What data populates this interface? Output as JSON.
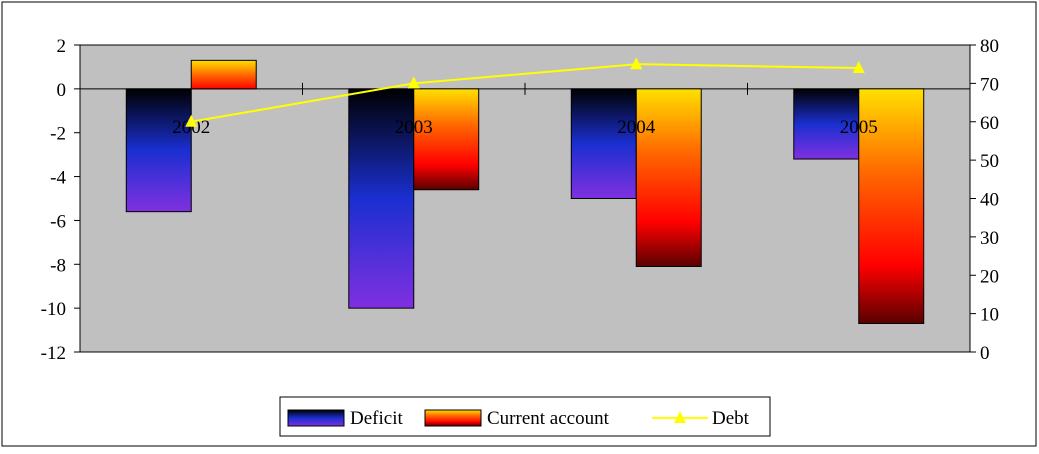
{
  "colors": {
    "plot_background": "#c0c0c0",
    "deficit_gradient": [
      "#000000",
      "#1a2fd0",
      "#8030e0"
    ],
    "current_account_gradient": [
      "#ffe000",
      "#ff6a00",
      "#ff0000",
      "#5a0000"
    ],
    "debt_line": "#ffff00"
  },
  "chart_data": {
    "type": "bar",
    "categories": [
      "2002",
      "2003",
      "2004",
      "2005"
    ],
    "series": [
      {
        "name": "Deficit",
        "type": "bar",
        "axis": "left",
        "values": [
          -5.6,
          -10.0,
          -5.0,
          -3.2
        ]
      },
      {
        "name": "Current account",
        "type": "bar",
        "axis": "left",
        "values": [
          1.3,
          -4.6,
          -8.1,
          -10.7
        ]
      },
      {
        "name": "Debt",
        "type": "line",
        "axis": "right",
        "marker": "triangle",
        "values": [
          60,
          70,
          75,
          74
        ]
      }
    ],
    "y_left": {
      "min": -12,
      "max": 2,
      "step": 2,
      "ticks": [
        "2",
        "0",
        "-2",
        "-4",
        "-6",
        "-8",
        "-10",
        "-12"
      ]
    },
    "y_right": {
      "min": 0,
      "max": 80,
      "step": 10,
      "ticks": [
        "80",
        "70",
        "60",
        "50",
        "40",
        "30",
        "20",
        "10",
        "0"
      ]
    },
    "grid": false,
    "category_labels_position": "at zero line",
    "legend": {
      "position": "bottom",
      "items": [
        "Deficit",
        "Current account",
        "Debt"
      ]
    }
  }
}
